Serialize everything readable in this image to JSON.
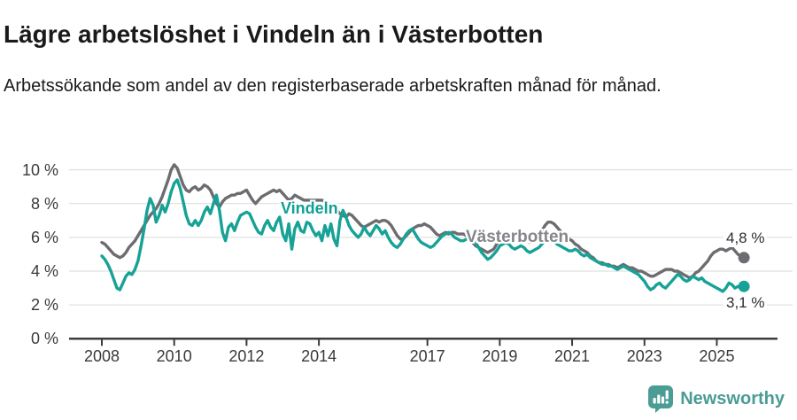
{
  "header": {
    "title": "Lägre arbetslöshet i Vindeln än i Västerbotten",
    "subtitle": "Arbetssökande som andel av den registerbaserade arbetskraften månad för månad."
  },
  "footer": {
    "brand": "Newsworthy",
    "brand_color": "#4a9c95",
    "logo_icon": "bar-chart-speech-bubble-icon"
  },
  "chart_data": {
    "type": "line",
    "title": "Lägre arbetslöshet i Vindeln än i Västerbotten",
    "unit": "%",
    "x_start_year": 2008,
    "x_interval": "monthly",
    "x_end_approx": "2025-10",
    "ylim": [
      0,
      10.5
    ],
    "grid": "horizontal",
    "grid_color": "#dadada",
    "axis_color": "#3c3c40",
    "tick_color": "#3a3a3a",
    "yticks": [
      {
        "value": 0,
        "label": "0 %"
      },
      {
        "value": 2,
        "label": "2 %"
      },
      {
        "value": 4,
        "label": "4 %"
      },
      {
        "value": 6,
        "label": "6 %"
      },
      {
        "value": 8,
        "label": "8 %"
      },
      {
        "value": 10,
        "label": "10 %"
      }
    ],
    "xticks": [
      {
        "value": 2008,
        "label": "2008"
      },
      {
        "value": 2010,
        "label": "2010"
      },
      {
        "value": 2012,
        "label": "2012"
      },
      {
        "value": 2014,
        "label": "2014"
      },
      {
        "value": 2017,
        "label": "2017"
      },
      {
        "value": 2019,
        "label": "2019"
      },
      {
        "value": 2021,
        "label": "2021"
      },
      {
        "value": 2023,
        "label": "2023"
      },
      {
        "value": 2025,
        "label": "2025"
      }
    ],
    "series": [
      {
        "name": "Västerbotten",
        "color": "#6c6c71",
        "label_color": "#85858b",
        "last_value": 4.8,
        "last_label": "4,8 %",
        "values": [
          5.7,
          5.6,
          5.4,
          5.2,
          5.0,
          4.9,
          4.8,
          4.9,
          5.1,
          5.4,
          5.6,
          5.8,
          6.1,
          6.4,
          6.7,
          7.0,
          7.3,
          7.5,
          7.7,
          8.0,
          8.4,
          8.9,
          9.4,
          10.0,
          10.3,
          10.1,
          9.6,
          9.1,
          8.8,
          8.7,
          8.9,
          9.0,
          8.8,
          8.9,
          9.1,
          9.0,
          8.8,
          8.4,
          8.0,
          7.8,
          8.1,
          8.3,
          8.4,
          8.5,
          8.5,
          8.6,
          8.6,
          8.7,
          8.8,
          8.5,
          8.2,
          8.0,
          8.2,
          8.4,
          8.5,
          8.6,
          8.7,
          8.8,
          8.7,
          8.8,
          8.6,
          8.4,
          8.2,
          8.3,
          8.5,
          8.4,
          8.3,
          8.2,
          8.2,
          8.2,
          8.2,
          8.2,
          8.2,
          8.2,
          8.1,
          8.0,
          7.8,
          7.7,
          7.6,
          7.4,
          7.3,
          7.2,
          7.4,
          7.3,
          7.1,
          6.9,
          6.7,
          6.6,
          6.7,
          6.8,
          6.9,
          7.0,
          6.9,
          7.0,
          7.0,
          6.9,
          6.7,
          6.4,
          6.1,
          5.9,
          5.9,
          6.1,
          6.3,
          6.5,
          6.6,
          6.7,
          6.7,
          6.8,
          6.7,
          6.6,
          6.4,
          6.2,
          6.1,
          6.2,
          6.3,
          6.2,
          6.3,
          6.3,
          6.2,
          6.2,
          6.2,
          6.1,
          5.9,
          5.7,
          5.5,
          5.4,
          5.3,
          5.2,
          5.1,
          5.2,
          5.3,
          5.6,
          5.9,
          6.0,
          6.1,
          6.1,
          6.2,
          6.2,
          6.1,
          6.0,
          5.9,
          5.8,
          5.7,
          5.8,
          5.9,
          6.1,
          6.4,
          6.7,
          6.9,
          6.9,
          6.8,
          6.6,
          6.4,
          6.2,
          6.0,
          5.9,
          5.8,
          5.6,
          5.5,
          5.3,
          5.2,
          5.1,
          4.9,
          4.8,
          4.6,
          4.5,
          4.5,
          4.4,
          4.4,
          4.3,
          4.3,
          4.2,
          4.3,
          4.4,
          4.3,
          4.2,
          4.2,
          4.1,
          4.0,
          4.0,
          3.9,
          3.8,
          3.7,
          3.7,
          3.8,
          3.9,
          4.0,
          4.1,
          4.1,
          4.1,
          4.0,
          4.0,
          3.9,
          3.8,
          3.7,
          3.6,
          3.7,
          3.9,
          4.0,
          4.2,
          4.4,
          4.6,
          4.9,
          5.1,
          5.2,
          5.3,
          5.3,
          5.2,
          5.3,
          5.4,
          5.2,
          5.0,
          4.9,
          4.8
        ]
      },
      {
        "name": "Vindeln",
        "color": "#16a296",
        "label_color": "#10a095",
        "last_value": 3.1,
        "last_label": "3,1 %",
        "values": [
          4.9,
          4.7,
          4.4,
          4.0,
          3.5,
          3.0,
          2.9,
          3.3,
          3.7,
          3.9,
          3.8,
          4.1,
          4.6,
          5.5,
          6.5,
          7.6,
          8.3,
          7.9,
          6.9,
          7.3,
          7.9,
          7.5,
          8.0,
          8.7,
          9.2,
          9.4,
          8.9,
          8.1,
          7.3,
          6.8,
          6.7,
          7.0,
          6.7,
          7.0,
          7.5,
          7.8,
          7.4,
          8.0,
          8.5,
          7.6,
          6.3,
          5.8,
          6.6,
          6.8,
          6.4,
          6.9,
          7.3,
          7.4,
          7.5,
          7.4,
          7.0,
          6.6,
          6.3,
          6.2,
          6.7,
          7.0,
          6.6,
          6.4,
          6.9,
          7.2,
          6.2,
          5.8,
          6.8,
          5.3,
          6.5,
          6.9,
          6.4,
          6.3,
          6.9,
          6.8,
          6.4,
          6.1,
          6.3,
          5.8,
          6.7,
          6.1,
          6.8,
          5.9,
          5.5,
          7.0,
          7.6,
          7.2,
          6.7,
          6.4,
          6.2,
          6.0,
          6.2,
          6.6,
          6.3,
          6.1,
          6.4,
          6.7,
          6.5,
          6.2,
          6.4,
          6.0,
          5.7,
          5.5,
          5.4,
          5.6,
          5.9,
          6.2,
          6.4,
          6.5,
          6.2,
          5.9,
          5.7,
          5.6,
          5.5,
          5.4,
          5.5,
          5.7,
          5.9,
          6.1,
          6.2,
          6.3,
          6.2,
          6.0,
          5.9,
          5.8,
          5.8,
          5.9,
          6.0,
          5.9,
          5.7,
          5.4,
          5.1,
          4.9,
          4.7,
          4.8,
          5.0,
          5.2,
          5.5,
          5.6,
          5.7,
          5.6,
          5.4,
          5.3,
          5.4,
          5.5,
          5.4,
          5.2,
          5.1,
          5.2,
          5.3,
          5.4,
          5.6,
          5.8,
          6.0,
          5.9,
          5.8,
          5.6,
          5.5,
          5.4,
          5.3,
          5.2,
          5.2,
          5.3,
          5.2,
          5.0,
          4.9,
          5.0,
          4.8,
          4.7,
          4.6,
          4.5,
          4.4,
          4.4,
          4.3,
          4.3,
          4.2,
          4.1,
          4.2,
          4.3,
          4.2,
          4.1,
          4.0,
          3.9,
          3.8,
          3.6,
          3.4,
          3.1,
          2.9,
          3.0,
          3.2,
          3.3,
          3.1,
          3.0,
          3.2,
          3.4,
          3.6,
          3.8,
          3.7,
          3.5,
          3.4,
          3.5,
          3.7,
          3.6,
          3.5,
          3.6,
          3.4,
          3.3,
          3.2,
          3.1,
          3.0,
          2.9,
          2.8,
          3.0,
          3.3,
          3.2,
          3.0,
          3.1,
          3.0,
          3.1
        ]
      }
    ]
  }
}
